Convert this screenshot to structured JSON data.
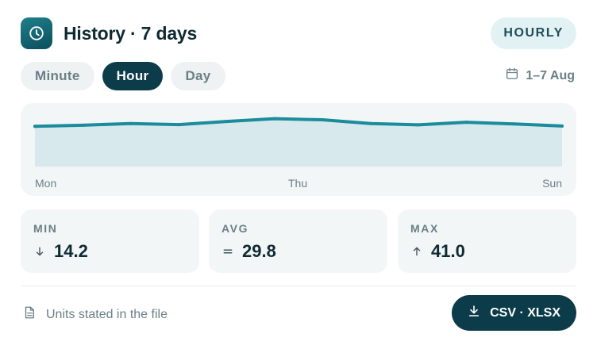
{
  "header": {
    "title": "History · 7 days",
    "mode_badge": "HOURLY",
    "icon": "clock-icon"
  },
  "tabs": [
    {
      "label": "Minute",
      "active": false
    },
    {
      "label": "Hour",
      "active": true
    },
    {
      "label": "Day",
      "active": false
    }
  ],
  "date_range": {
    "label": "1–7 Aug",
    "icon": "calendar-icon"
  },
  "chart_data": {
    "type": "area",
    "x_labels": [
      "Mon",
      "Thu",
      "Sun"
    ],
    "values": [
      29.0,
      29.8,
      31.0,
      30.2,
      32.5,
      34.5,
      33.7,
      31.0,
      30.1,
      31.9,
      30.7,
      29.2
    ],
    "ylim": [
      0,
      40
    ],
    "grid": false,
    "colors": {
      "line": "#1a8c9c",
      "fill": "#d7e9ed"
    }
  },
  "stats": [
    {
      "label": "MIN",
      "value": "14.2",
      "icon": "arrow-down-icon"
    },
    {
      "label": "AVG",
      "value": "29.8",
      "icon": "equals-icon"
    },
    {
      "label": "MAX",
      "value": "41.0",
      "icon": "arrow-up-icon"
    }
  ],
  "footer": {
    "note": "Units stated in the file",
    "note_icon": "file-icon",
    "export_label": "CSV · XLSX",
    "export_icon": "download-icon"
  },
  "colors": {
    "accent": "#0c3c49",
    "badge_bg": "#e2f2f4",
    "card_bg": "#f2f6f7"
  }
}
